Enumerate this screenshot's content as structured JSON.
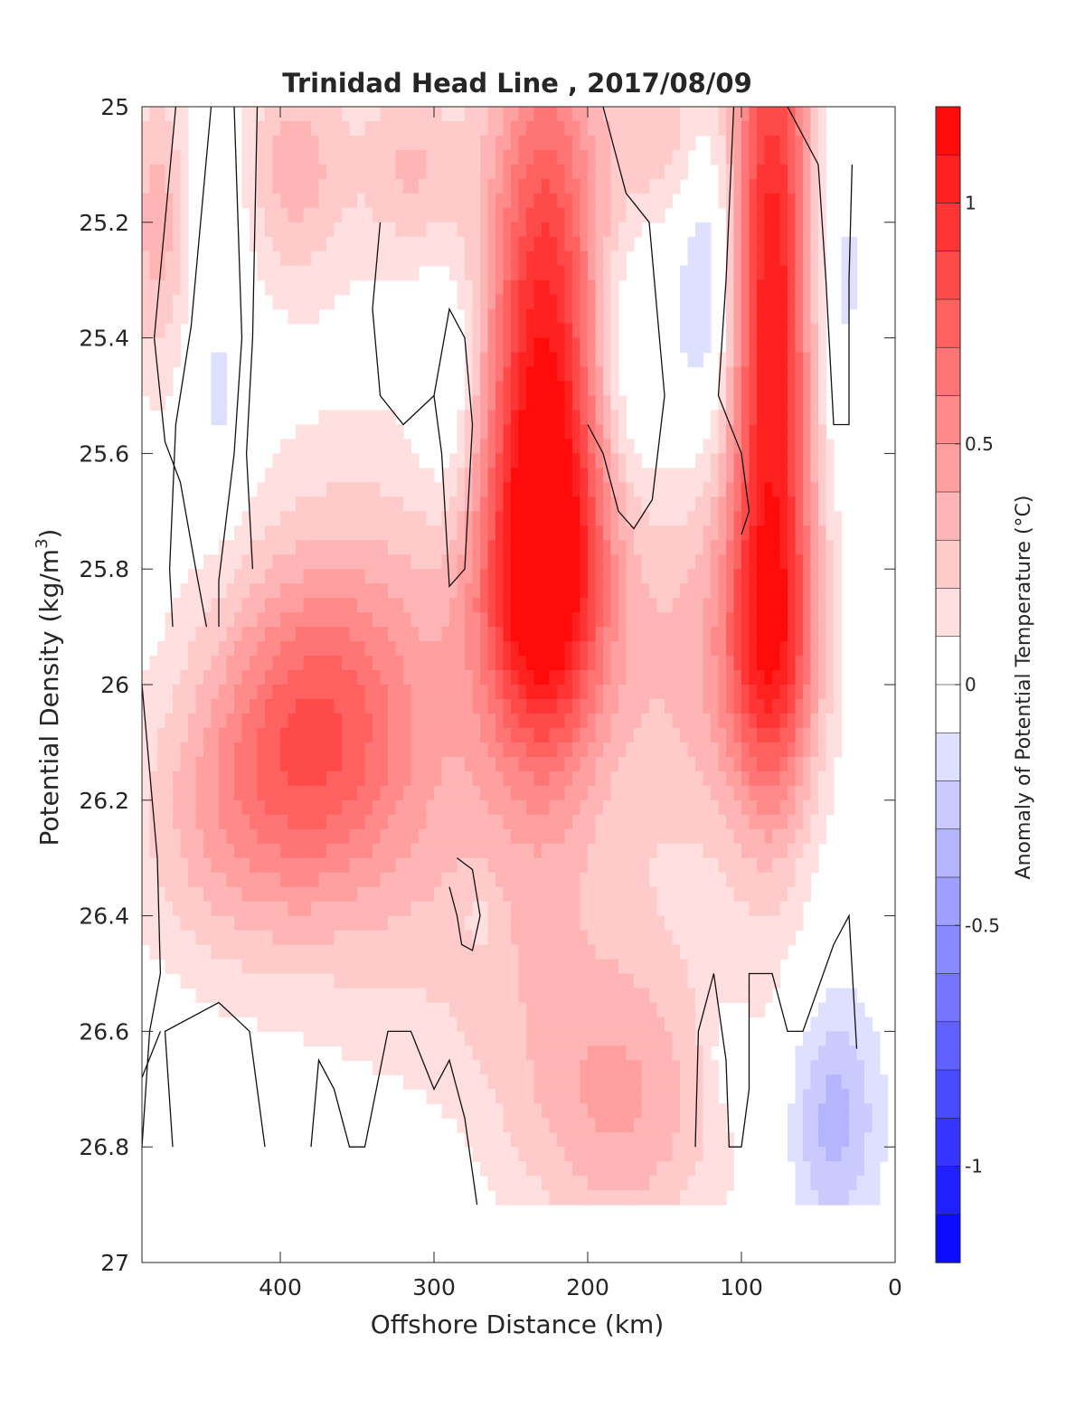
{
  "chart_data": {
    "type": "heatmap",
    "title": "Trinidad Head Line , 2017/08/09",
    "xlabel": "Offshore Distance (km)",
    "ylabel": "Potential Density (kg/m",
    "ylabel_sup": "3",
    "ylabel_close": ")",
    "colorbar_label": "Anomaly of Potential Temperature (°C)",
    "xlim": [
      490,
      0
    ],
    "ylim": [
      25,
      27
    ],
    "x_reversed": true,
    "y_reversed": true,
    "x_ticks": [
      400,
      300,
      200,
      100,
      0
    ],
    "y_ticks": [
      25,
      25.2,
      25.4,
      25.6,
      25.8,
      26,
      26.2,
      26.4,
      26.6,
      26.8,
      27
    ],
    "colorbar_range": [
      -1.2,
      1.2
    ],
    "colorbar_step": 0.1,
    "colorbar_ticks": [
      1,
      0.5,
      0,
      -0.5,
      -1
    ],
    "colormap": {
      "negative": "#0000ff",
      "zero": "#ffffff",
      "positive": "#ff0000"
    },
    "data_x_extent": [
      490,
      0
    ],
    "data_y_extent": [
      25,
      26.9
    ],
    "features": [
      {
        "x": 228,
        "y": 25.45,
        "value": 1.05,
        "sx": 28,
        "sy": 0.42
      },
      {
        "x": 228,
        "y": 25.85,
        "value": 0.65,
        "sx": 30,
        "sy": 0.2
      },
      {
        "x": 80,
        "y": 25.35,
        "value": 1.1,
        "sx": 20,
        "sy": 0.5
      },
      {
        "x": 80,
        "y": 25.95,
        "value": 0.5,
        "sx": 22,
        "sy": 0.18
      },
      {
        "x": 380,
        "y": 26.08,
        "value": 0.55,
        "sx": 45,
        "sy": 0.2
      },
      {
        "x": 330,
        "y": 26.05,
        "value": 0.3,
        "sx": 70,
        "sy": 0.35
      },
      {
        "x": 440,
        "y": 26.25,
        "value": 0.25,
        "sx": 45,
        "sy": 0.18
      },
      {
        "x": 480,
        "y": 25.2,
        "value": 0.35,
        "sx": 15,
        "sy": 0.2
      },
      {
        "x": 390,
        "y": 25.1,
        "value": 0.35,
        "sx": 25,
        "sy": 0.15
      },
      {
        "x": 315,
        "y": 25.1,
        "value": 0.3,
        "sx": 25,
        "sy": 0.12
      },
      {
        "x": 150,
        "y": 25.05,
        "value": 0.25,
        "sx": 25,
        "sy": 0.12
      },
      {
        "x": 130,
        "y": 25.95,
        "value": 0.3,
        "sx": 40,
        "sy": 0.25
      },
      {
        "x": 175,
        "y": 26.75,
        "value": 0.3,
        "sx": 45,
        "sy": 0.18
      },
      {
        "x": 215,
        "y": 26.55,
        "value": 0.18,
        "sx": 70,
        "sy": 0.25
      },
      {
        "x": 440,
        "y": 25.5,
        "value": -0.15,
        "sx": 15,
        "sy": 0.15
      },
      {
        "x": 440,
        "y": 25.15,
        "value": -0.1,
        "sx": 12,
        "sy": 0.1
      },
      {
        "x": 290,
        "y": 25.5,
        "value": -0.2,
        "sx": 15,
        "sy": 0.15
      },
      {
        "x": 175,
        "y": 25.45,
        "value": -0.2,
        "sx": 20,
        "sy": 0.15
      },
      {
        "x": 120,
        "y": 25.3,
        "value": -0.3,
        "sx": 15,
        "sy": 0.2
      },
      {
        "x": 40,
        "y": 25.3,
        "value": -0.2,
        "sx": 15,
        "sy": 0.22
      },
      {
        "x": 40,
        "y": 26.75,
        "value": -0.35,
        "sx": 22,
        "sy": 0.15
      },
      {
        "x": 270,
        "y": 26.4,
        "value": -0.1,
        "sx": 10,
        "sy": 0.05
      },
      {
        "x": 330,
        "y": 26.85,
        "value": -0.1,
        "sx": 30,
        "sy": 0.08
      },
      {
        "x": 110,
        "y": 26.65,
        "value": -0.12,
        "sx": 10,
        "sy": 0.08
      }
    ],
    "zero_contours": [
      [
        [
          468,
          25
        ],
        [
          482,
          25.4
        ],
        [
          475,
          25.58
        ],
        [
          465,
          25.65
        ],
        [
          455,
          25.8
        ],
        [
          448,
          25.9
        ]
      ],
      [
        [
          445,
          25
        ],
        [
          458,
          25.38
        ],
        [
          468,
          25.55
        ],
        [
          472,
          25.8
        ],
        [
          470,
          25.9
        ]
      ],
      [
        [
          430,
          25
        ],
        [
          425,
          25.4
        ],
        [
          430,
          25.6
        ],
        [
          440,
          25.82
        ],
        [
          440,
          25.9
        ]
      ],
      [
        [
          415,
          25
        ],
        [
          418,
          25.4
        ],
        [
          422,
          25.6
        ],
        [
          418,
          25.8
        ]
      ],
      [
        [
          335,
          25.2
        ],
        [
          340,
          25.35
        ],
        [
          335,
          25.5
        ],
        [
          320,
          25.55
        ],
        [
          300,
          25.5
        ],
        [
          290,
          25.35
        ],
        [
          280,
          25.4
        ],
        [
          275,
          25.55
        ],
        [
          280,
          25.8
        ],
        [
          290,
          25.83
        ],
        [
          295,
          25.6
        ],
        [
          300,
          25.5
        ]
      ],
      [
        [
          190,
          25
        ],
        [
          175,
          25.15
        ],
        [
          160,
          25.2
        ],
        [
          155,
          25.35
        ],
        [
          150,
          25.5
        ],
        [
          158,
          25.68
        ],
        [
          170,
          25.73
        ],
        [
          180,
          25.7
        ],
        [
          190,
          25.6
        ],
        [
          200,
          25.55
        ]
      ],
      [
        [
          105,
          25
        ],
        [
          110,
          25.3
        ],
        [
          115,
          25.5
        ],
        [
          100,
          25.6
        ],
        [
          95,
          25.7
        ],
        [
          100,
          25.74
        ]
      ],
      [
        [
          70,
          25
        ],
        [
          50,
          25.1
        ],
        [
          45,
          25.3
        ],
        [
          40,
          25.55
        ],
        [
          30,
          25.55
        ],
        [
          30,
          25.3
        ],
        [
          28,
          25.1
        ]
      ],
      [
        [
          490,
          26
        ],
        [
          480,
          26.3
        ],
        [
          478,
          26.5
        ],
        [
          485,
          26.6
        ],
        [
          490,
          26.8
        ]
      ],
      [
        [
          290,
          26.35
        ],
        [
          285,
          26.4
        ],
        [
          282,
          26.45
        ],
        [
          275,
          26.46
        ],
        [
          270,
          26.4
        ],
        [
          275,
          26.32
        ],
        [
          285,
          26.3
        ]
      ],
      [
        [
          470,
          26.8
        ],
        [
          475,
          26.6
        ],
        [
          440,
          26.55
        ],
        [
          420,
          26.6
        ],
        [
          410,
          26.8
        ]
      ],
      [
        [
          380,
          26.8
        ],
        [
          375,
          26.65
        ],
        [
          365,
          26.7
        ],
        [
          355,
          26.8
        ],
        [
          345,
          26.8
        ],
        [
          330,
          26.6
        ],
        [
          315,
          26.6
        ],
        [
          300,
          26.7
        ],
        [
          290,
          26.65
        ],
        [
          280,
          26.75
        ],
        [
          272,
          26.9
        ]
      ],
      [
        [
          130,
          26.8
        ],
        [
          128,
          26.6
        ],
        [
          118,
          26.5
        ],
        [
          110,
          26.65
        ],
        [
          108,
          26.8
        ],
        [
          100,
          26.8
        ],
        [
          95,
          26.7
        ],
        [
          95,
          26.5
        ],
        [
          80,
          26.5
        ],
        [
          70,
          26.6
        ],
        [
          60,
          26.6
        ],
        [
          40,
          26.45
        ],
        [
          30,
          26.4
        ],
        [
          25,
          26.63
        ]
      ],
      [
        [
          490,
          26.68
        ],
        [
          478,
          26.6
        ]
      ]
    ]
  }
}
